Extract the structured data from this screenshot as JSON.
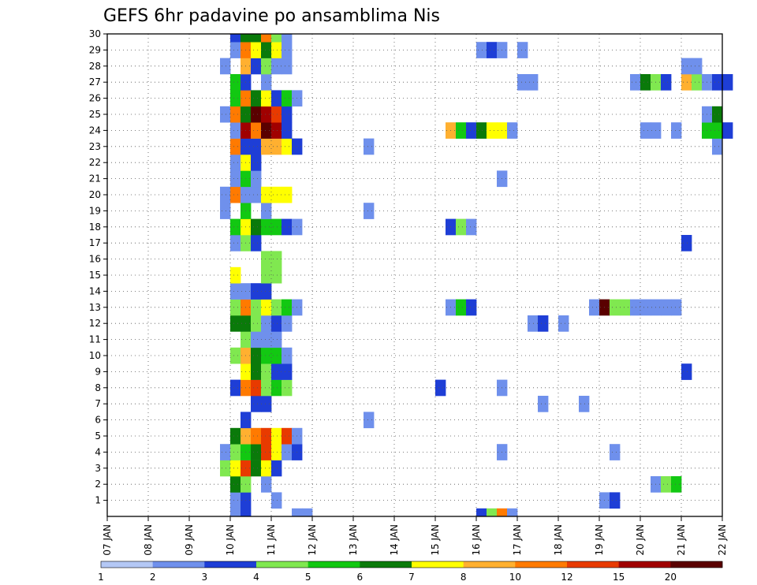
{
  "chart_data": {
    "type": "heatmap",
    "title": "GEFS 6hr padavine po ansamblima Nis",
    "xlabel": "",
    "ylabel": "",
    "x_ticks": [
      "07 JAN",
      "08 JAN",
      "09 JAN",
      "10 JAN",
      "11 JAN",
      "12 JAN",
      "13 JAN",
      "14 JAN",
      "15 JAN",
      "16 JAN",
      "17 JAN",
      "18 JAN",
      "19 JAN",
      "20 JAN",
      "21 JAN",
      "22 JAN"
    ],
    "y_ticks": [
      1,
      2,
      3,
      4,
      5,
      6,
      7,
      8,
      9,
      10,
      11,
      12,
      13,
      14,
      15,
      16,
      17,
      18,
      19,
      20,
      21,
      22,
      23,
      24,
      25,
      26,
      27,
      28,
      29,
      30
    ],
    "grid": true,
    "colorbar": {
      "labels": [
        "1",
        "2",
        "3",
        "4",
        "5",
        "6",
        "7",
        "8",
        "10",
        "12",
        "15",
        "20"
      ],
      "colors": [
        "#b4c8f5",
        "#6f90ec",
        "#1e3ed6",
        "#80e850",
        "#12c812",
        "#0a7a0a",
        "#ffff00",
        "#ffb030",
        "#ff7a00",
        "#e83a00",
        "#a00000",
        "#5a0000"
      ]
    },
    "cells": [
      {
        "m": 0,
        "t": 12,
        "c": 1
      },
      {
        "m": 0,
        "t": 13,
        "c": 2
      },
      {
        "m": 0,
        "t": 18,
        "c": 1
      },
      {
        "m": 0,
        "t": 19,
        "c": 1
      },
      {
        "m": 0,
        "t": 36,
        "c": 2
      },
      {
        "m": 0,
        "t": 37,
        "c": 3
      },
      {
        "m": 0,
        "t": 38,
        "c": 8
      },
      {
        "m": 0,
        "t": 39,
        "c": 1
      },
      {
        "m": 1,
        "t": 12,
        "c": 1
      },
      {
        "m": 1,
        "t": 13,
        "c": 2
      },
      {
        "m": 1,
        "t": 16,
        "c": 1
      },
      {
        "m": 1,
        "t": 48,
        "c": 1
      },
      {
        "m": 1,
        "t": 49,
        "c": 2
      },
      {
        "m": 2,
        "t": 12,
        "c": 5
      },
      {
        "m": 2,
        "t": 13,
        "c": 3
      },
      {
        "m": 2,
        "t": 15,
        "c": 1
      },
      {
        "m": 2,
        "t": 53,
        "c": 1
      },
      {
        "m": 2,
        "t": 54,
        "c": 3
      },
      {
        "m": 2,
        "t": 55,
        "c": 4
      },
      {
        "m": 3,
        "t": 11,
        "c": 3
      },
      {
        "m": 3,
        "t": 12,
        "c": 6
      },
      {
        "m": 3,
        "t": 13,
        "c": 9
      },
      {
        "m": 3,
        "t": 14,
        "c": 5
      },
      {
        "m": 3,
        "t": 15,
        "c": 6
      },
      {
        "m": 3,
        "t": 16,
        "c": 2
      },
      {
        "m": 4,
        "t": 11,
        "c": 1
      },
      {
        "m": 4,
        "t": 12,
        "c": 3
      },
      {
        "m": 4,
        "t": 13,
        "c": 4
      },
      {
        "m": 4,
        "t": 14,
        "c": 5
      },
      {
        "m": 4,
        "t": 15,
        "c": 9
      },
      {
        "m": 4,
        "t": 16,
        "c": 6
      },
      {
        "m": 4,
        "t": 17,
        "c": 1
      },
      {
        "m": 4,
        "t": 18,
        "c": 2
      },
      {
        "m": 4,
        "t": 38,
        "c": 1
      },
      {
        "m": 4,
        "t": 49,
        "c": 1
      },
      {
        "m": 5,
        "t": 12,
        "c": 5
      },
      {
        "m": 5,
        "t": 13,
        "c": 7
      },
      {
        "m": 5,
        "t": 14,
        "c": 8
      },
      {
        "m": 5,
        "t": 15,
        "c": 9
      },
      {
        "m": 5,
        "t": 16,
        "c": 6
      },
      {
        "m": 5,
        "t": 17,
        "c": 9
      },
      {
        "m": 5,
        "t": 18,
        "c": 1
      },
      {
        "m": 6,
        "t": 13,
        "c": 2
      },
      {
        "m": 6,
        "t": 25,
        "c": 1
      },
      {
        "m": 7,
        "t": 14,
        "c": 2
      },
      {
        "m": 7,
        "t": 15,
        "c": 2
      },
      {
        "m": 7,
        "t": 42,
        "c": 1
      },
      {
        "m": 7,
        "t": 46,
        "c": 1
      },
      {
        "m": 8,
        "t": 12,
        "c": 2
      },
      {
        "m": 8,
        "t": 13,
        "c": 8
      },
      {
        "m": 8,
        "t": 14,
        "c": 9
      },
      {
        "m": 8,
        "t": 15,
        "c": 3
      },
      {
        "m": 8,
        "t": 16,
        "c": 4
      },
      {
        "m": 8,
        "t": 17,
        "c": 3
      },
      {
        "m": 8,
        "t": 32,
        "c": 2
      },
      {
        "m": 8,
        "t": 38,
        "c": 1
      },
      {
        "m": 9,
        "t": 13,
        "c": 6
      },
      {
        "m": 9,
        "t": 14,
        "c": 5
      },
      {
        "m": 9,
        "t": 15,
        "c": 3
      },
      {
        "m": 9,
        "t": 16,
        "c": 2
      },
      {
        "m": 9,
        "t": 17,
        "c": 2
      },
      {
        "m": 9,
        "t": 56,
        "c": 2
      },
      {
        "m": 10,
        "t": 12,
        "c": 3
      },
      {
        "m": 10,
        "t": 13,
        "c": 7
      },
      {
        "m": 10,
        "t": 14,
        "c": 5
      },
      {
        "m": 10,
        "t": 15,
        "c": 4
      },
      {
        "m": 10,
        "t": 16,
        "c": 4
      },
      {
        "m": 10,
        "t": 17,
        "c": 1
      },
      {
        "m": 11,
        "t": 13,
        "c": 3
      },
      {
        "m": 11,
        "t": 14,
        "c": 1
      },
      {
        "m": 11,
        "t": 15,
        "c": 1
      },
      {
        "m": 11,
        "t": 16,
        "c": 1
      },
      {
        "m": 12,
        "t": 12,
        "c": 5
      },
      {
        "m": 12,
        "t": 13,
        "c": 5
      },
      {
        "m": 12,
        "t": 14,
        "c": 3
      },
      {
        "m": 12,
        "t": 15,
        "c": 1
      },
      {
        "m": 12,
        "t": 16,
        "c": 2
      },
      {
        "m": 12,
        "t": 17,
        "c": 1
      },
      {
        "m": 12,
        "t": 41,
        "c": 1
      },
      {
        "m": 12,
        "t": 42,
        "c": 2
      },
      {
        "m": 12,
        "t": 44,
        "c": 1
      },
      {
        "m": 13,
        "t": 12,
        "c": 3
      },
      {
        "m": 13,
        "t": 13,
        "c": 8
      },
      {
        "m": 13,
        "t": 14,
        "c": 3
      },
      {
        "m": 13,
        "t": 15,
        "c": 6
      },
      {
        "m": 13,
        "t": 16,
        "c": 3
      },
      {
        "m": 13,
        "t": 17,
        "c": 4
      },
      {
        "m": 13,
        "t": 18,
        "c": 1
      },
      {
        "m": 13,
        "t": 33,
        "c": 1
      },
      {
        "m": 13,
        "t": 34,
        "c": 4
      },
      {
        "m": 13,
        "t": 35,
        "c": 2
      },
      {
        "m": 13,
        "t": 47,
        "c": 1
      },
      {
        "m": 13,
        "t": 48,
        "c": 11
      },
      {
        "m": 13,
        "t": 49,
        "c": 3
      },
      {
        "m": 13,
        "t": 50,
        "c": 3
      },
      {
        "m": 13,
        "t": 51,
        "c": 1
      },
      {
        "m": 13,
        "t": 52,
        "c": 1
      },
      {
        "m": 13,
        "t": 53,
        "c": 1
      },
      {
        "m": 13,
        "t": 54,
        "c": 1
      },
      {
        "m": 13,
        "t": 55,
        "c": 1
      },
      {
        "m": 14,
        "t": 12,
        "c": 1
      },
      {
        "m": 14,
        "t": 13,
        "c": 1
      },
      {
        "m": 14,
        "t": 14,
        "c": 2
      },
      {
        "m": 14,
        "t": 15,
        "c": 2
      },
      {
        "m": 15,
        "t": 12,
        "c": 6
      },
      {
        "m": 15,
        "t": 15,
        "c": 3
      },
      {
        "m": 15,
        "t": 16,
        "c": 3
      },
      {
        "m": 16,
        "t": 15,
        "c": 3
      },
      {
        "m": 16,
        "t": 16,
        "c": 3
      },
      {
        "m": 17,
        "t": 12,
        "c": 1
      },
      {
        "m": 17,
        "t": 13,
        "c": 3
      },
      {
        "m": 17,
        "t": 14,
        "c": 2
      },
      {
        "m": 17,
        "t": 56,
        "c": 2
      },
      {
        "m": 18,
        "t": 12,
        "c": 4
      },
      {
        "m": 18,
        "t": 13,
        "c": 6
      },
      {
        "m": 18,
        "t": 14,
        "c": 5
      },
      {
        "m": 18,
        "t": 15,
        "c": 4
      },
      {
        "m": 18,
        "t": 16,
        "c": 4
      },
      {
        "m": 18,
        "t": 17,
        "c": 2
      },
      {
        "m": 18,
        "t": 18,
        "c": 1
      },
      {
        "m": 18,
        "t": 33,
        "c": 2
      },
      {
        "m": 18,
        "t": 34,
        "c": 3
      },
      {
        "m": 18,
        "t": 35,
        "c": 1
      },
      {
        "m": 19,
        "t": 11,
        "c": 1
      },
      {
        "m": 19,
        "t": 13,
        "c": 4
      },
      {
        "m": 19,
        "t": 15,
        "c": 1
      },
      {
        "m": 19,
        "t": 25,
        "c": 1
      },
      {
        "m": 20,
        "t": 11,
        "c": 1
      },
      {
        "m": 20,
        "t": 12,
        "c": 8
      },
      {
        "m": 20,
        "t": 13,
        "c": 1
      },
      {
        "m": 20,
        "t": 14,
        "c": 1
      },
      {
        "m": 20,
        "t": 15,
        "c": 6
      },
      {
        "m": 20,
        "t": 16,
        "c": 6
      },
      {
        "m": 20,
        "t": 17,
        "c": 6
      },
      {
        "m": 21,
        "t": 12,
        "c": 1
      },
      {
        "m": 21,
        "t": 13,
        "c": 4
      },
      {
        "m": 21,
        "t": 14,
        "c": 1
      },
      {
        "m": 21,
        "t": 38,
        "c": 1
      },
      {
        "m": 22,
        "t": 12,
        "c": 1
      },
      {
        "m": 22,
        "t": 13,
        "c": 6
      },
      {
        "m": 22,
        "t": 14,
        "c": 2
      },
      {
        "m": 23,
        "t": 12,
        "c": 8
      },
      {
        "m": 23,
        "t": 13,
        "c": 2
      },
      {
        "m": 23,
        "t": 14,
        "c": 2
      },
      {
        "m": 23,
        "t": 15,
        "c": 7
      },
      {
        "m": 23,
        "t": 16,
        "c": 7
      },
      {
        "m": 23,
        "t": 17,
        "c": 6
      },
      {
        "m": 23,
        "t": 18,
        "c": 2
      },
      {
        "m": 23,
        "t": 25,
        "c": 1
      },
      {
        "m": 23,
        "t": 59,
        "c": 1
      },
      {
        "m": 24,
        "t": 12,
        "c": 1
      },
      {
        "m": 24,
        "t": 13,
        "c": 10
      },
      {
        "m": 24,
        "t": 14,
        "c": 8
      },
      {
        "m": 24,
        "t": 15,
        "c": 11
      },
      {
        "m": 24,
        "t": 16,
        "c": 10
      },
      {
        "m": 24,
        "t": 17,
        "c": 2
      },
      {
        "m": 24,
        "t": 33,
        "c": 7
      },
      {
        "m": 24,
        "t": 34,
        "c": 4
      },
      {
        "m": 24,
        "t": 35,
        "c": 2
      },
      {
        "m": 24,
        "t": 36,
        "c": 5
      },
      {
        "m": 24,
        "t": 37,
        "c": 6
      },
      {
        "m": 24,
        "t": 38,
        "c": 6
      },
      {
        "m": 24,
        "t": 39,
        "c": 1
      },
      {
        "m": 24,
        "t": 52,
        "c": 1
      },
      {
        "m": 24,
        "t": 53,
        "c": 1
      },
      {
        "m": 24,
        "t": 55,
        "c": 1
      },
      {
        "m": 24,
        "t": 58,
        "c": 4
      },
      {
        "m": 24,
        "t": 59,
        "c": 4
      },
      {
        "m": 24,
        "t": 60,
        "c": 2
      },
      {
        "m": 25,
        "t": 11,
        "c": 1
      },
      {
        "m": 25,
        "t": 12,
        "c": 8
      },
      {
        "m": 25,
        "t": 13,
        "c": 5
      },
      {
        "m": 25,
        "t": 14,
        "c": 11
      },
      {
        "m": 25,
        "t": 15,
        "c": 10
      },
      {
        "m": 25,
        "t": 16,
        "c": 9
      },
      {
        "m": 25,
        "t": 17,
        "c": 2
      },
      {
        "m": 25,
        "t": 58,
        "c": 1
      },
      {
        "m": 25,
        "t": 59,
        "c": 5
      },
      {
        "m": 26,
        "t": 12,
        "c": 4
      },
      {
        "m": 26,
        "t": 13,
        "c": 8
      },
      {
        "m": 26,
        "t": 14,
        "c": 5
      },
      {
        "m": 26,
        "t": 15,
        "c": 6
      },
      {
        "m": 26,
        "t": 16,
        "c": 2
      },
      {
        "m": 26,
        "t": 17,
        "c": 4
      },
      {
        "m": 26,
        "t": 18,
        "c": 1
      },
      {
        "m": 27,
        "t": 12,
        "c": 4
      },
      {
        "m": 27,
        "t": 13,
        "c": 2
      },
      {
        "m": 27,
        "t": 15,
        "c": 1
      },
      {
        "m": 27,
        "t": 40,
        "c": 1
      },
      {
        "m": 27,
        "t": 41,
        "c": 1
      },
      {
        "m": 27,
        "t": 51,
        "c": 1
      },
      {
        "m": 27,
        "t": 52,
        "c": 5
      },
      {
        "m": 27,
        "t": 53,
        "c": 3
      },
      {
        "m": 27,
        "t": 54,
        "c": 2
      },
      {
        "m": 27,
        "t": 56,
        "c": 7
      },
      {
        "m": 27,
        "t": 57,
        "c": 3
      },
      {
        "m": 27,
        "t": 58,
        "c": 1
      },
      {
        "m": 27,
        "t": 59,
        "c": 2
      },
      {
        "m": 27,
        "t": 60,
        "c": 2
      },
      {
        "m": 28,
        "t": 11,
        "c": 1
      },
      {
        "m": 28,
        "t": 13,
        "c": 7
      },
      {
        "m": 28,
        "t": 14,
        "c": 2
      },
      {
        "m": 28,
        "t": 15,
        "c": 3
      },
      {
        "m": 28,
        "t": 16,
        "c": 1
      },
      {
        "m": 28,
        "t": 17,
        "c": 1
      },
      {
        "m": 28,
        "t": 56,
        "c": 1
      },
      {
        "m": 28,
        "t": 57,
        "c": 1
      },
      {
        "m": 29,
        "t": 12,
        "c": 1
      },
      {
        "m": 29,
        "t": 13,
        "c": 8
      },
      {
        "m": 29,
        "t": 14,
        "c": 6
      },
      {
        "m": 29,
        "t": 15,
        "c": 5
      },
      {
        "m": 29,
        "t": 16,
        "c": 6
      },
      {
        "m": 29,
        "t": 17,
        "c": 1
      },
      {
        "m": 29,
        "t": 36,
        "c": 1
      },
      {
        "m": 29,
        "t": 37,
        "c": 2
      },
      {
        "m": 29,
        "t": 38,
        "c": 1
      },
      {
        "m": 29,
        "t": 40,
        "c": 1
      },
      {
        "m": 30,
        "t": 12,
        "c": 2
      },
      {
        "m": 30,
        "t": 13,
        "c": 5
      },
      {
        "m": 30,
        "t": 14,
        "c": 5
      },
      {
        "m": 30,
        "t": 15,
        "c": 8
      },
      {
        "m": 30,
        "t": 16,
        "c": 3
      },
      {
        "m": 30,
        "t": 17,
        "c": 1
      }
    ]
  }
}
